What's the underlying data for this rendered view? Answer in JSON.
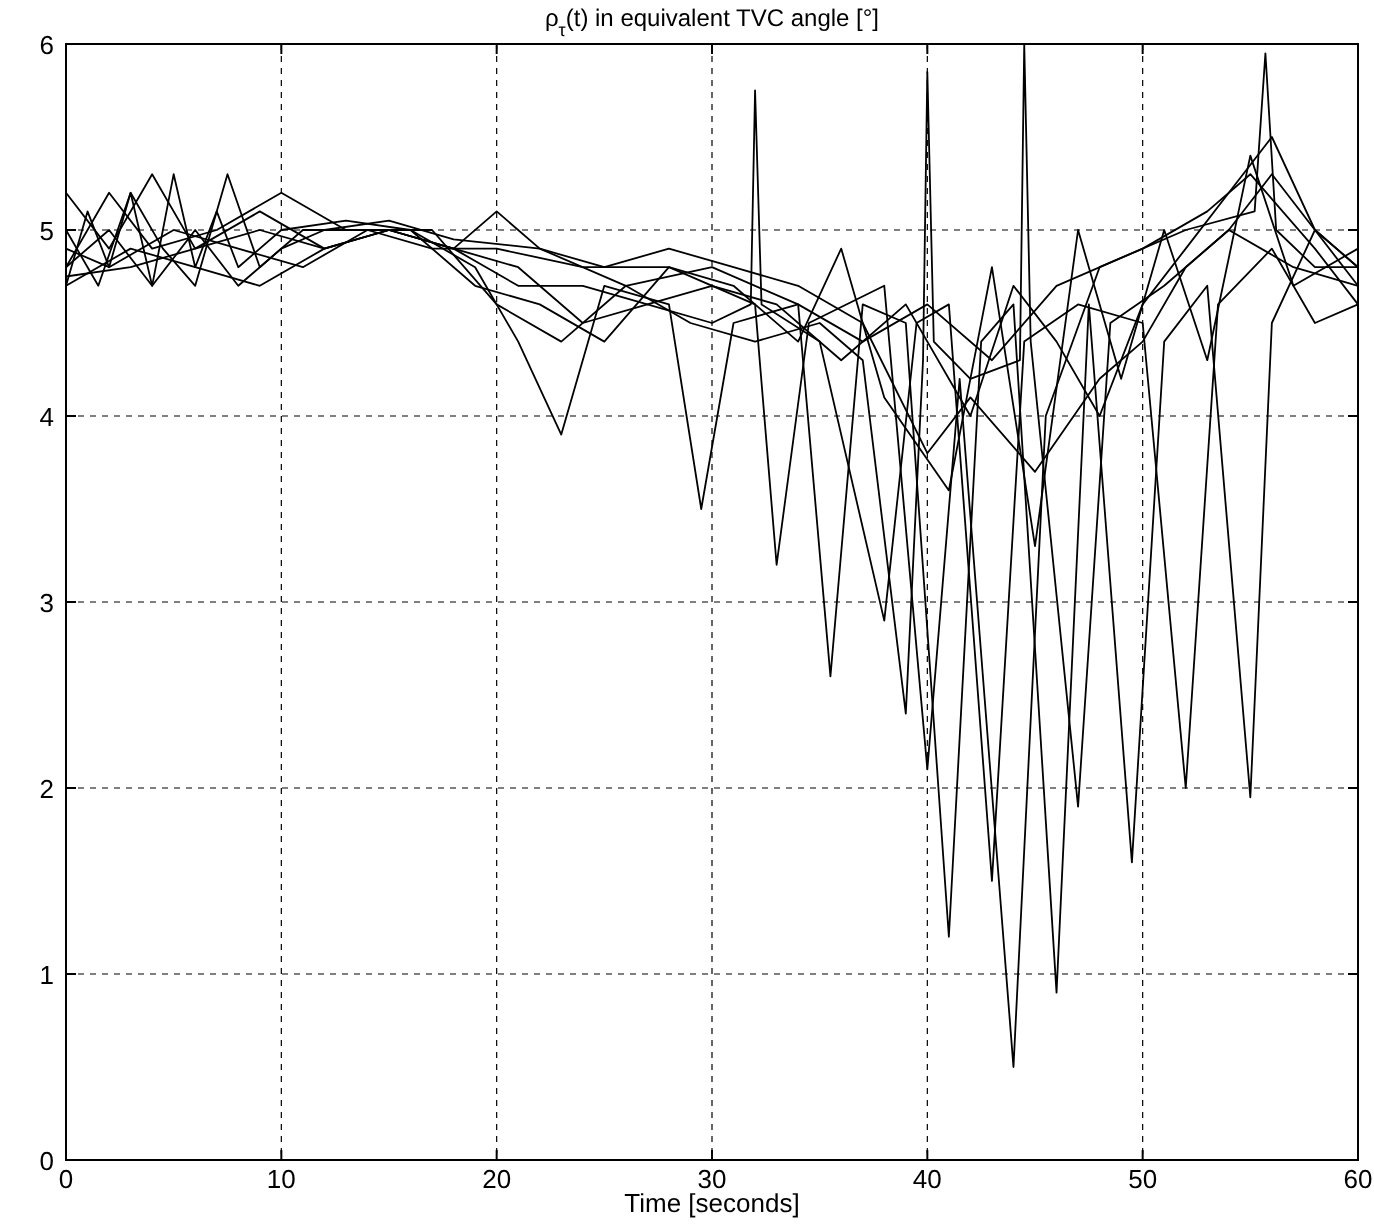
{
  "chart_data": {
    "type": "line",
    "title": "ρ$_{τ}$(t) in equivalent TVC angle [°]",
    "xlabel": "Time [seconds]",
    "xlim": [
      0,
      60
    ],
    "ylim": [
      0,
      6
    ],
    "xticks": [
      0,
      10,
      20,
      30,
      40,
      50,
      60
    ],
    "yticks": [
      0,
      1,
      2,
      3,
      4,
      5,
      6
    ],
    "grid": true,
    "marker": "none",
    "line_style": "solid",
    "series": [
      {
        "color": "#000000",
        "x": [
          0,
          1,
          2,
          3,
          4,
          5,
          6,
          7,
          8,
          10,
          13,
          16,
          19,
          21,
          23,
          25,
          28,
          29.5,
          31,
          34,
          37,
          40,
          43,
          46,
          50,
          53,
          55,
          58,
          60
        ],
        "values": [
          4.7,
          5.1,
          4.8,
          5.2,
          4.7,
          5.3,
          4.8,
          5.1,
          4.8,
          5.0,
          5.05,
          5.0,
          4.8,
          4.4,
          3.9,
          4.7,
          4.6,
          3.5,
          4.5,
          4.6,
          4.4,
          4.6,
          4.3,
          4.7,
          4.9,
          5.1,
          5.3,
          4.9,
          4.6
        ]
      },
      {
        "color": "#000000",
        "x": [
          0,
          1.5,
          3,
          4.5,
          6,
          7.5,
          9,
          11,
          14,
          17,
          20,
          24,
          28,
          32,
          33,
          34.5,
          38,
          40,
          41.5,
          44,
          45.5,
          48,
          52,
          55.2,
          55.7,
          56.2,
          58,
          60
        ],
        "values": [
          5.0,
          4.7,
          5.2,
          4.9,
          4.7,
          5.3,
          4.8,
          5.0,
          5.0,
          4.9,
          4.9,
          4.8,
          4.8,
          4.6,
          3.2,
          4.5,
          4.7,
          2.1,
          4.2,
          0.5,
          4.0,
          4.8,
          5.0,
          5.1,
          5.95,
          5.0,
          4.8,
          4.8
        ]
      },
      {
        "color": "#000000",
        "x": [
          0,
          2,
          4,
          6,
          8,
          10,
          12,
          15,
          18,
          22,
          26,
          30,
          34,
          35.5,
          37,
          39,
          41,
          42.5,
          44,
          46,
          47.5,
          49.5,
          51,
          53,
          55,
          56,
          58,
          60
        ],
        "values": [
          4.8,
          5.0,
          4.7,
          5.0,
          4.7,
          4.9,
          5.0,
          5.05,
          4.95,
          4.9,
          4.7,
          4.8,
          4.6,
          2.6,
          4.6,
          4.5,
          1.2,
          4.4,
          4.6,
          0.9,
          4.6,
          1.6,
          4.4,
          4.7,
          1.95,
          4.5,
          5.0,
          4.7
        ]
      },
      {
        "color": "#000000",
        "x": [
          0,
          2,
          4,
          6,
          9,
          12,
          15,
          18,
          21,
          24,
          27,
          30,
          31.8,
          32,
          32.3,
          35,
          38,
          39.5,
          41,
          43,
          44.5,
          47,
          50,
          52,
          53.5,
          56,
          58,
          60
        ],
        "values": [
          5.2,
          4.9,
          5.3,
          4.9,
          5.1,
          4.9,
          5.0,
          4.9,
          4.8,
          4.5,
          4.6,
          4.5,
          4.6,
          5.75,
          4.6,
          4.4,
          2.9,
          4.5,
          4.6,
          1.5,
          4.4,
          4.6,
          4.5,
          2.0,
          4.6,
          4.9,
          4.5,
          4.6
        ]
      },
      {
        "color": "#000000",
        "x": [
          0,
          2,
          5,
          8,
          11,
          14,
          17,
          20,
          23,
          26,
          29,
          32,
          35,
          37,
          39,
          39.8,
          40,
          40.3,
          42,
          44.3,
          44.5,
          44.8,
          47,
          48.5,
          51,
          54,
          57,
          60
        ],
        "values": [
          4.9,
          4.8,
          5.0,
          4.9,
          4.8,
          5.0,
          5.0,
          4.6,
          4.4,
          4.7,
          4.5,
          4.4,
          4.5,
          4.3,
          2.4,
          4.3,
          5.85,
          4.4,
          4.2,
          4.3,
          6.0,
          4.4,
          1.9,
          4.5,
          4.7,
          5.0,
          4.8,
          4.7
        ]
      },
      {
        "color": "#000000",
        "x": [
          0,
          3,
          6,
          9,
          12,
          15,
          18,
          20,
          22,
          25,
          28,
          31,
          34,
          37,
          40,
          42,
          45,
          48,
          50,
          52,
          54,
          56,
          58,
          60
        ],
        "values": [
          4.7,
          4.9,
          4.8,
          4.7,
          4.9,
          5.0,
          4.9,
          5.1,
          4.9,
          4.8,
          4.9,
          4.8,
          4.7,
          4.5,
          3.8,
          4.1,
          3.7,
          4.2,
          4.4,
          4.8,
          5.0,
          5.3,
          5.0,
          4.8
        ]
      },
      {
        "color": "#000000",
        "x": [
          0,
          2,
          4,
          7,
          10,
          13,
          16,
          19,
          22,
          25,
          28,
          31,
          34,
          36,
          38,
          41,
          43,
          45,
          47,
          49,
          51,
          53,
          55,
          57,
          60
        ],
        "values": [
          4.8,
          5.2,
          4.9,
          5.0,
          5.2,
          5.0,
          5.0,
          4.7,
          4.6,
          4.4,
          4.8,
          4.7,
          4.4,
          4.9,
          4.1,
          3.6,
          4.8,
          3.3,
          5.0,
          4.2,
          5.0,
          4.3,
          5.4,
          4.7,
          4.9
        ]
      },
      {
        "color": "#000000",
        "x": [
          0,
          3,
          6,
          9,
          12,
          15,
          18,
          21,
          24,
          27,
          30,
          33,
          36,
          39,
          42,
          44,
          46,
          48,
          50,
          52,
          54,
          56,
          58,
          60
        ],
        "values": [
          4.75,
          4.8,
          4.9,
          5.0,
          4.9,
          5.0,
          4.9,
          4.7,
          4.7,
          4.6,
          4.7,
          4.6,
          4.3,
          4.6,
          4.0,
          4.7,
          4.4,
          4.0,
          4.6,
          4.9,
          5.2,
          5.5,
          5.0,
          4.8
        ]
      }
    ]
  }
}
